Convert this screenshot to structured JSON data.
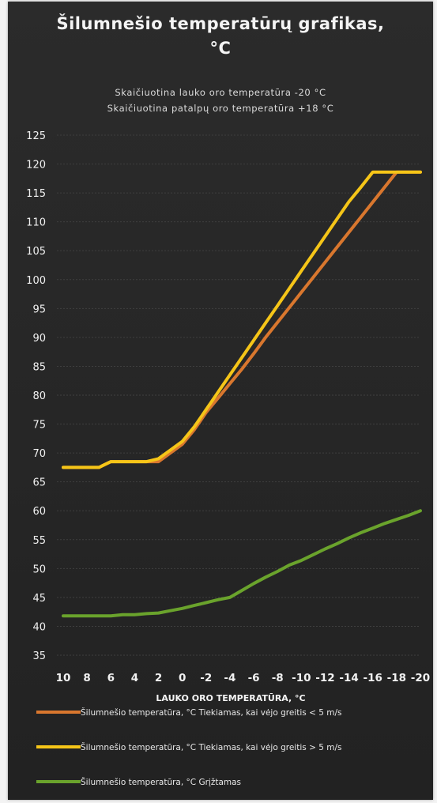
{
  "chart_data": {
    "type": "line",
    "title": "Šilumnešio temperatūrų grafikas,",
    "title_unit": "°C",
    "subtitle_lines": [
      "Skaičiuotina lauko oro temperatūra -20 °C",
      "Skaičiuotina patalpų oro temperatūra +18 °C"
    ],
    "xlabel": "LAUKO ORO TEMPERATŪRA, °C",
    "ylabel": "",
    "x": [
      10,
      9,
      8,
      7,
      6,
      5,
      4,
      3,
      2,
      1,
      0,
      -1,
      -2,
      -3,
      -4,
      -5,
      -6,
      -7,
      -8,
      -9,
      -10,
      -11,
      -12,
      -13,
      -14,
      -15,
      -16,
      -17,
      -18,
      -19,
      -20
    ],
    "x_ticks": [
      10,
      8,
      6,
      4,
      2,
      0,
      -2,
      -4,
      -6,
      -8,
      -10,
      -12,
      -14,
      -16,
      -18,
      -20
    ],
    "y_ticks": [
      35,
      40,
      45,
      50,
      55,
      60,
      65,
      70,
      75,
      80,
      85,
      90,
      95,
      100,
      105,
      110,
      115,
      120,
      125
    ],
    "ylim": [
      35,
      125
    ],
    "xlim": [
      10,
      -20
    ],
    "grid": true,
    "legend_position": "bottom",
    "series": [
      {
        "name": "Šilumnešio temperatūra, °C Tiekiamas, kai vėjo greitis < 5 m/s",
        "color": "#d9772e",
        "values": [
          67.5,
          67.5,
          67.5,
          67.5,
          68.5,
          68.5,
          68.5,
          68.5,
          68.5,
          70,
          71.5,
          74,
          77,
          79.5,
          82,
          84.5,
          87.2,
          90,
          92.6,
          95.2,
          97.8,
          100.4,
          103,
          105.6,
          108.2,
          110.8,
          113.4,
          116,
          118.6,
          118.6,
          118.6
        ]
      },
      {
        "name": "Šilumnešio temperatūra, °C Tiekiamas, kai vėjo greitis > 5 m/s",
        "color": "#f5c518",
        "values": [
          67.5,
          67.5,
          67.5,
          67.5,
          68.5,
          68.5,
          68.5,
          68.5,
          69,
          70.5,
          72,
          74.5,
          77.5,
          80.5,
          83.5,
          86.5,
          89.5,
          92.5,
          95.5,
          98.5,
          101.5,
          104.5,
          107.5,
          110.5,
          113.5,
          116,
          118.6,
          118.6,
          118.6,
          118.6,
          118.6
        ]
      },
      {
        "name": "Šilumnešio temperatūra, °C Grįžtamas",
        "color": "#6aa32c",
        "values": [
          41.8,
          41.8,
          41.8,
          41.8,
          41.8,
          42,
          42,
          42.2,
          42.3,
          42.7,
          43.1,
          43.6,
          44.1,
          44.6,
          45,
          46.2,
          47.4,
          48.5,
          49.5,
          50.6,
          51.4,
          52.4,
          53.4,
          54.3,
          55.3,
          56.2,
          57.0,
          57.8,
          58.5,
          59.2,
          60.0
        ]
      }
    ]
  }
}
